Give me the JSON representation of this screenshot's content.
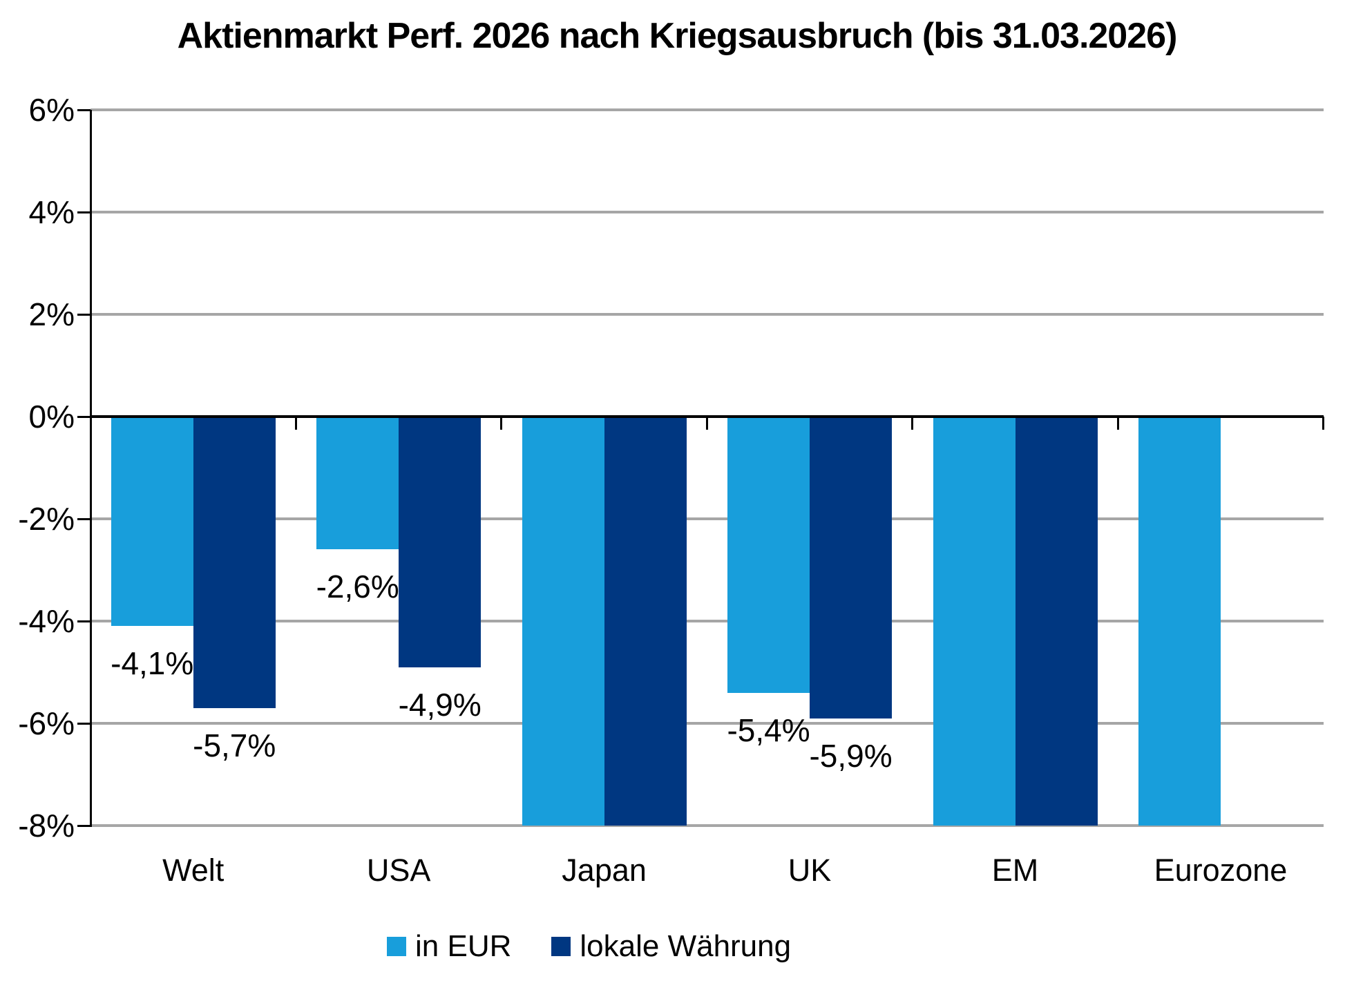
{
  "page": {
    "background": "#FFFFFF"
  },
  "chart_data": {
    "type": "bar",
    "title": "Aktienmarkt Perf. 2026 nach Kriegsausbruch (bis 31.03.2026)",
    "categories": [
      "Welt",
      "USA",
      "Japan",
      "UK",
      "EM",
      "Eurozone"
    ],
    "series": [
      {
        "name": "in EUR",
        "color": "#189EDB",
        "values": [
          -4.1,
          -2.6,
          null,
          -5.4,
          null,
          null
        ],
        "data_labels": [
          "-4,1%",
          "-2,6%",
          "",
          "-5,4%",
          "",
          ""
        ],
        "bar_present": [
          true,
          true,
          true,
          true,
          true,
          true
        ],
        "clipped_below_axis_min": [
          false,
          false,
          true,
          false,
          true,
          true
        ]
      },
      {
        "name": "lokale Währung",
        "color": "#003781",
        "values": [
          -5.7,
          -4.9,
          null,
          -5.9,
          null,
          null
        ],
        "data_labels": [
          "-5,7%",
          "-4,9%",
          "",
          "-5,9%",
          "",
          ""
        ],
        "bar_present": [
          true,
          true,
          true,
          true,
          true,
          false
        ],
        "clipped_below_axis_min": [
          false,
          false,
          true,
          false,
          true,
          false
        ]
      }
    ],
    "y_axis": {
      "tick_labels": [
        "6%",
        "4%",
        "2%",
        "0%",
        "-2%",
        "-4%",
        "-6%",
        "-8%"
      ],
      "tick_values": [
        6,
        4,
        2,
        0,
        -2,
        -4,
        -6,
        -8
      ],
      "max": 6,
      "min": -8,
      "grid": true
    },
    "legend": {
      "position": "bottom",
      "entries": [
        "in EUR",
        "lokale Währung"
      ]
    },
    "colors": {
      "gridline": "#A6A6A6",
      "axis": "#000000",
      "text": "#000000"
    }
  }
}
